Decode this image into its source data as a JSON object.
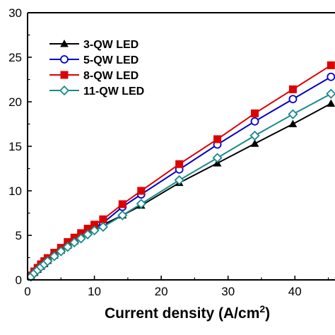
{
  "chart_data": {
    "type": "line",
    "xlabel_main": "Current density (A/cm",
    "xlabel_sup": "2",
    "xlabel_close": ")",
    "ylabel": "",
    "xlim": [
      0,
      46
    ],
    "ylim": [
      0,
      30
    ],
    "x_ticks": [
      0,
      10,
      20,
      30,
      40
    ],
    "y_ticks": [
      0,
      5,
      10,
      15,
      20,
      25,
      30
    ],
    "grid": false,
    "legend_position": "top-left",
    "series": [
      {
        "name": "3-QW LED",
        "color": "#000000",
        "marker": "triangle-filled",
        "x": [
          0.5,
          1,
          1.5,
          2,
          2.5,
          3,
          4,
          5,
          6,
          7,
          8,
          9,
          10,
          11.3,
          14.2,
          17,
          22.7,
          28.4,
          34,
          39.7,
          45.4
        ],
        "y": [
          0.4,
          0.8,
          1.15,
          1.5,
          1.8,
          2.15,
          2.75,
          3.3,
          3.85,
          4.35,
          4.9,
          5.35,
          5.85,
          6.2,
          7.25,
          8.35,
          10.9,
          13.1,
          15.3,
          17.5,
          19.8
        ]
      },
      {
        "name": "5-QW LED",
        "color": "#0000cc",
        "marker": "circle-open",
        "x": [
          0.5,
          1,
          1.5,
          2,
          2.5,
          3,
          4,
          5,
          6,
          7,
          8,
          9,
          10,
          11.3,
          14.2,
          17,
          22.7,
          28.4,
          34,
          39.7,
          45.4
        ],
        "y": [
          0.4,
          0.85,
          1.2,
          1.55,
          1.9,
          2.25,
          2.85,
          3.4,
          3.95,
          4.45,
          4.95,
          5.4,
          5.9,
          6.4,
          8.2,
          9.6,
          12.4,
          15.2,
          17.8,
          20.3,
          22.8
        ]
      },
      {
        "name": "8-QW LED",
        "color": "#dd0000",
        "marker": "square-filled",
        "x": [
          0.5,
          1,
          1.5,
          2,
          2.5,
          3,
          4,
          5,
          6,
          7,
          8,
          9,
          10,
          11.3,
          14.2,
          17,
          22.7,
          28.4,
          34,
          39.7,
          45.4
        ],
        "y": [
          0.5,
          0.95,
          1.35,
          1.75,
          2.1,
          2.45,
          3.05,
          3.6,
          4.25,
          4.75,
          5.25,
          5.75,
          6.2,
          6.8,
          8.5,
          10.0,
          13.0,
          15.8,
          18.7,
          21.4,
          24.1
        ]
      },
      {
        "name": "11-QW LED",
        "color": "#1a8a8a",
        "marker": "diamond-open",
        "x": [
          0.5,
          1,
          1.5,
          2,
          2.5,
          3,
          4,
          5,
          6,
          7,
          8,
          9,
          10,
          11.3,
          14.2,
          17,
          22.7,
          28.4,
          34,
          39.7,
          45.4
        ],
        "y": [
          0.35,
          0.75,
          1.1,
          1.45,
          1.75,
          2.1,
          2.65,
          3.2,
          3.7,
          4.2,
          4.65,
          5.1,
          5.55,
          5.95,
          7.25,
          8.55,
          11.2,
          13.7,
          16.2,
          18.6,
          20.9
        ]
      }
    ]
  }
}
